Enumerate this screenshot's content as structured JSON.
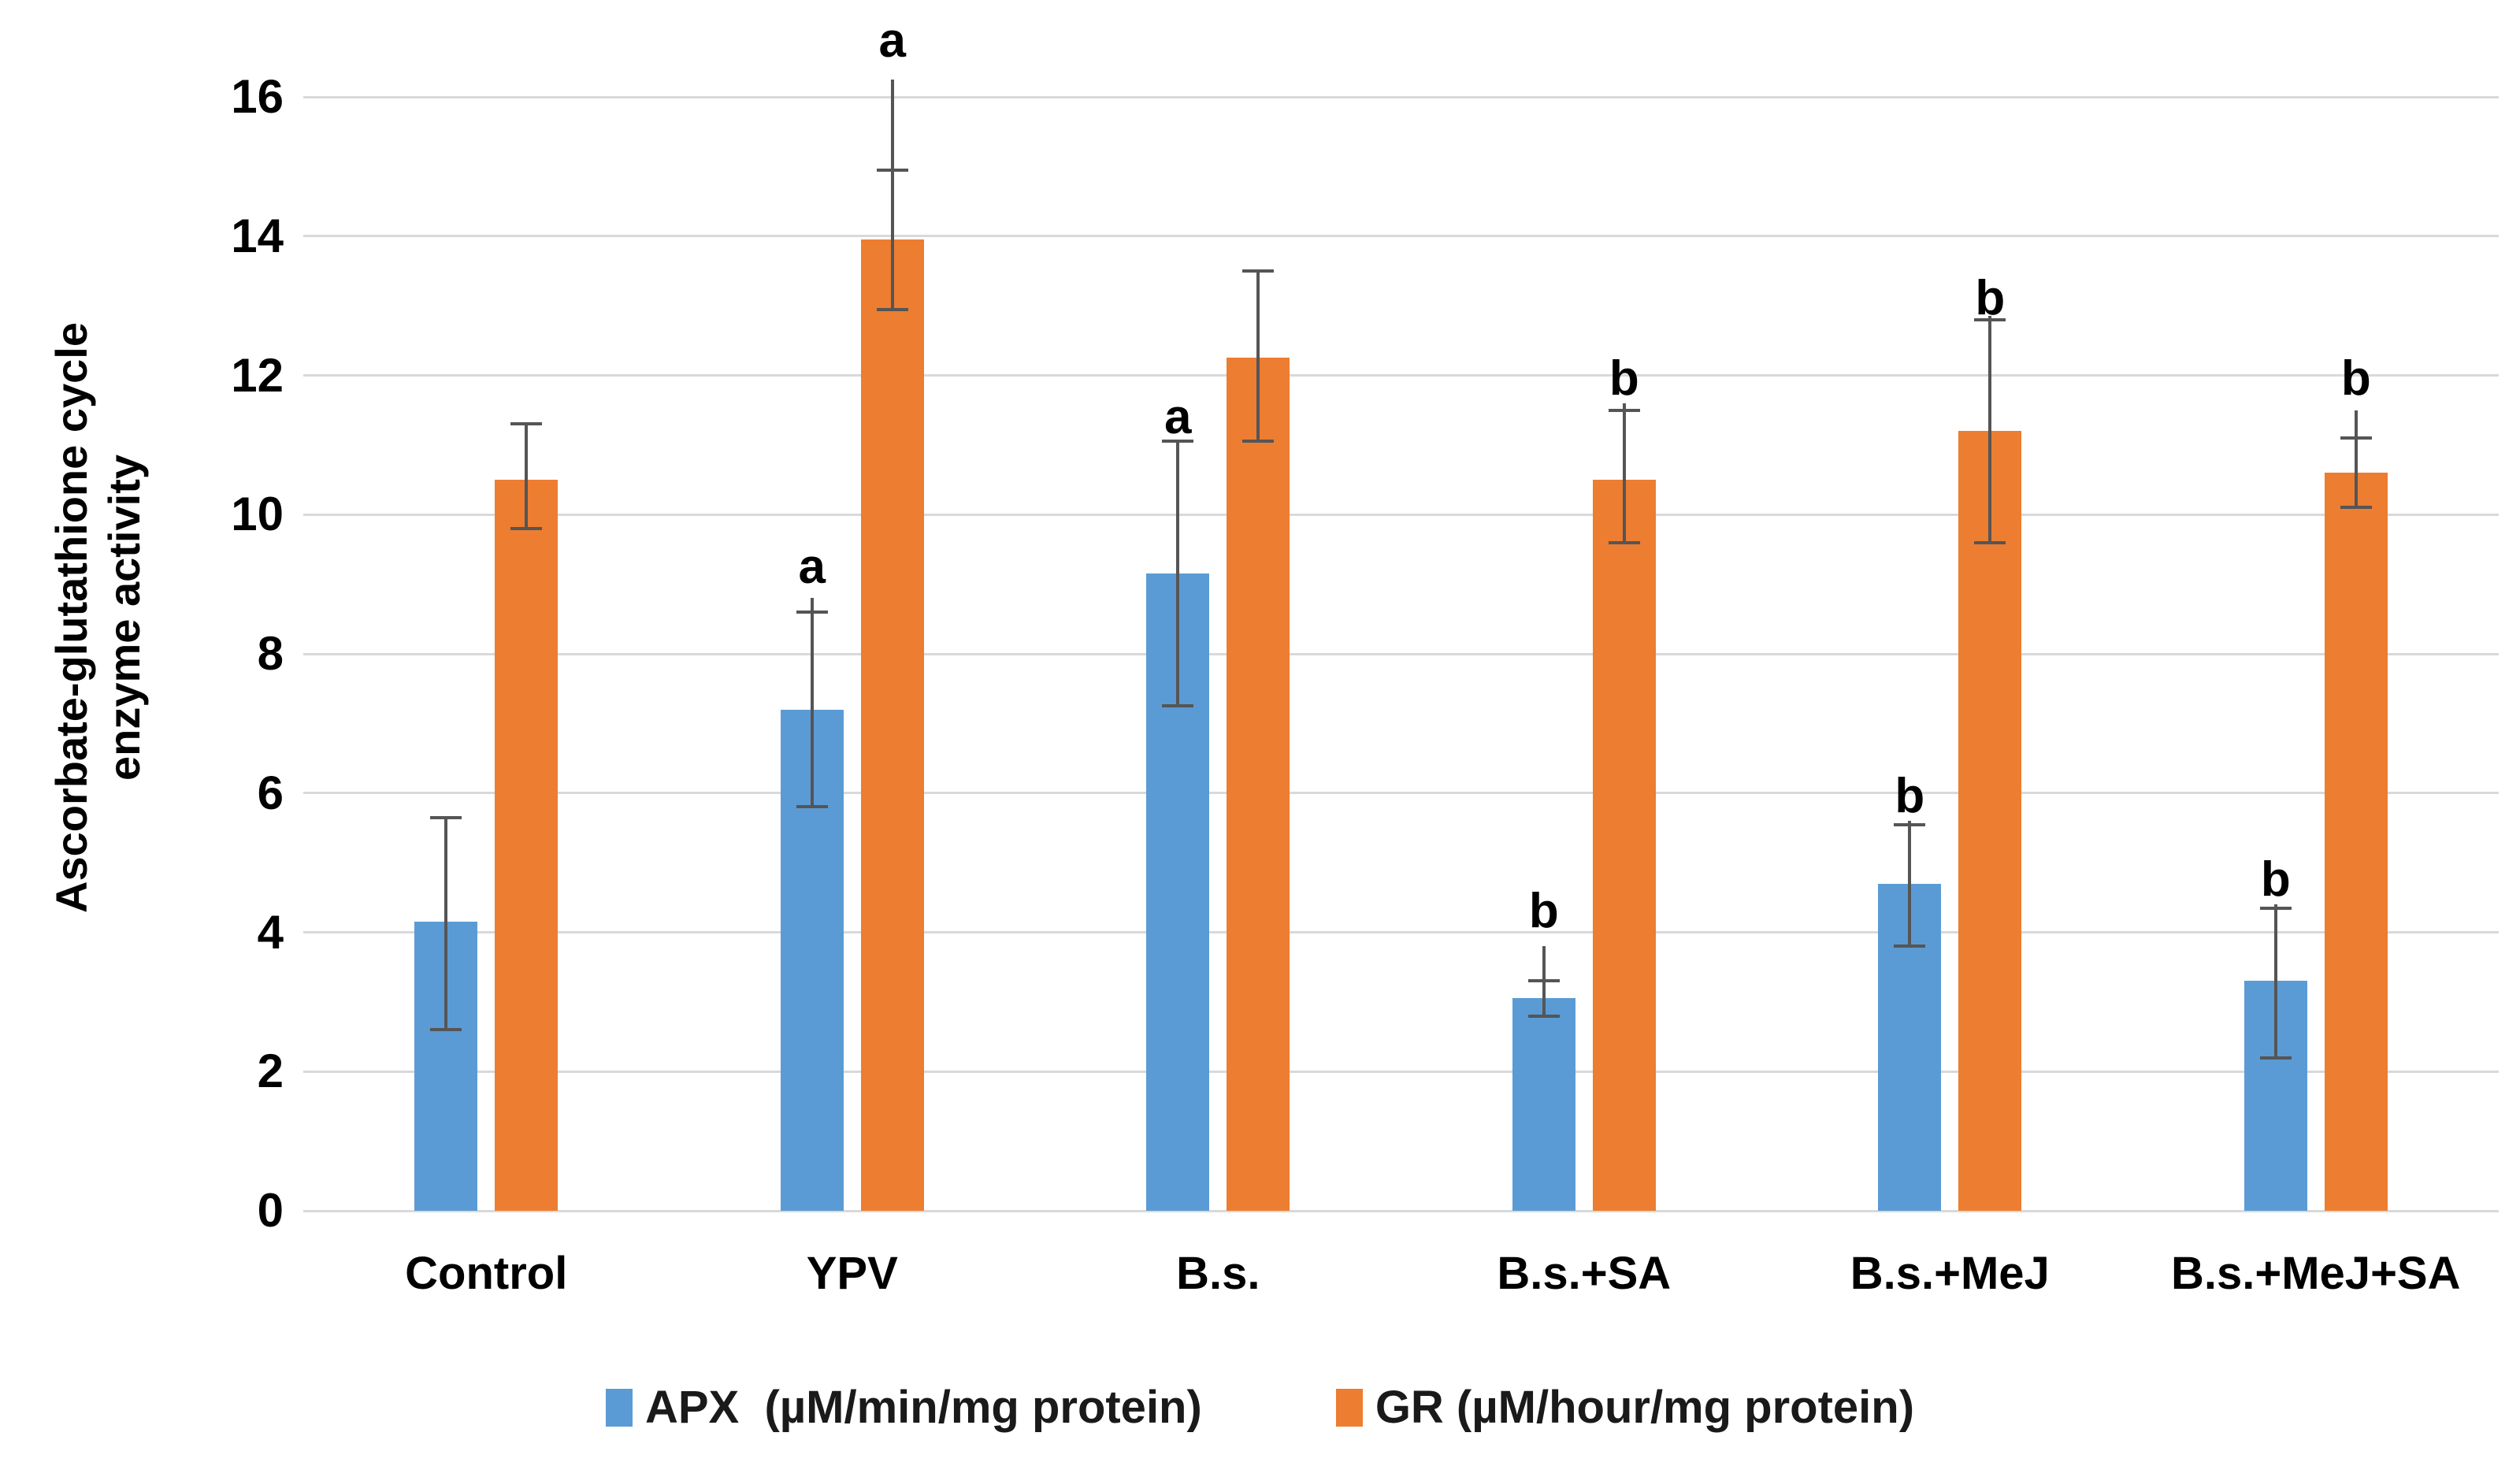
{
  "colors": {
    "apx_bar": "#5B9BD5",
    "gr_bar": "#ED7D31",
    "gridline": "#D9D9D9",
    "error_bar": "#555555",
    "text": "#000000"
  },
  "chart_data": {
    "type": "bar",
    "title": "",
    "xlabel": "",
    "ylabel": "Ascorbate-glutathione cycle enzyme activity",
    "ylabel_lines": [
      "Ascorbate-glutathione cycle",
      "enzyme activity"
    ],
    "ylim": [
      0,
      16
    ],
    "yticks": [
      0,
      2,
      4,
      6,
      8,
      10,
      12,
      14,
      16
    ],
    "grid": true,
    "legend_position": "bottom",
    "categories": [
      "Control",
      "YPV",
      "B.s.",
      "B.s.+SA",
      "B.s.+MeJ",
      "B.s.+MeJ+SA"
    ],
    "series": [
      {
        "name": "APX  (µM/min/mg protein)",
        "key": "apx",
        "color": "#5B9BD5",
        "values": [
          4.15,
          7.2,
          9.15,
          3.05,
          4.7,
          3.3
        ],
        "error_up": [
          1.5,
          1.4,
          1.9,
          0.25,
          0.85,
          1.05
        ],
        "error_down": [
          1.55,
          1.4,
          1.9,
          0.25,
          0.9,
          1.1
        ],
        "whisker_line_top": [
          null,
          8.8,
          null,
          3.8,
          5.6,
          4.4
        ],
        "sig_labels": [
          "",
          "a",
          "a",
          "b",
          "b",
          "b"
        ],
        "sig_label_y": [
          null,
          9.25,
          11.4,
          4.3,
          5.95,
          4.75
        ]
      },
      {
        "name": "GR (µM/hour/mg protein)",
        "key": "gr",
        "color": "#ED7D31",
        "values": [
          10.5,
          13.95,
          12.25,
          10.5,
          11.2,
          10.6
        ],
        "error_up": [
          0.8,
          1.0,
          1.25,
          1.0,
          1.6,
          0.5
        ],
        "error_down": [
          0.7,
          1.0,
          1.2,
          0.9,
          1.6,
          0.5
        ],
        "whisker_line_top": [
          null,
          16.25,
          null,
          11.6,
          12.85,
          11.5
        ],
        "sig_labels": [
          "",
          "a",
          "",
          "b",
          "b",
          "b"
        ],
        "sig_label_y": [
          null,
          16.8,
          null,
          11.95,
          13.1,
          11.95
        ]
      }
    ]
  }
}
